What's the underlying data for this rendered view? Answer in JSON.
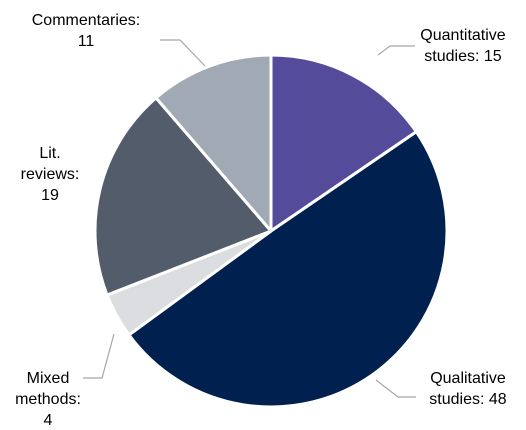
{
  "chart_data": {
    "type": "pie",
    "title": "",
    "start_angle_deg": 0,
    "direction": "clockwise",
    "series": [
      {
        "slices": [
          {
            "label_lines": [
              "Quantitative",
              "studies: 15"
            ],
            "category": "Quantitative studies",
            "value": 15,
            "color": "#544c9a"
          },
          {
            "label_lines": [
              "Qualitative",
              "studies: 48"
            ],
            "category": "Qualitative studies",
            "value": 48,
            "color": "#00204f"
          },
          {
            "label_lines": [
              "Mixed",
              "methods:",
              "4"
            ],
            "category": "Mixed methods",
            "value": 4,
            "color": "#dcdde0"
          },
          {
            "label_lines": [
              "Lit.",
              "reviews:",
              "19"
            ],
            "category": "Lit. reviews",
            "value": 19,
            "color": "#525c6a"
          },
          {
            "label_lines": [
              "Commentaries:",
              "11"
            ],
            "category": "Commentaries",
            "value": 11,
            "color": "#a1aab4"
          }
        ]
      }
    ],
    "slice_border_color": "#ffffff",
    "leader_line_color": "#a6a6a6"
  }
}
